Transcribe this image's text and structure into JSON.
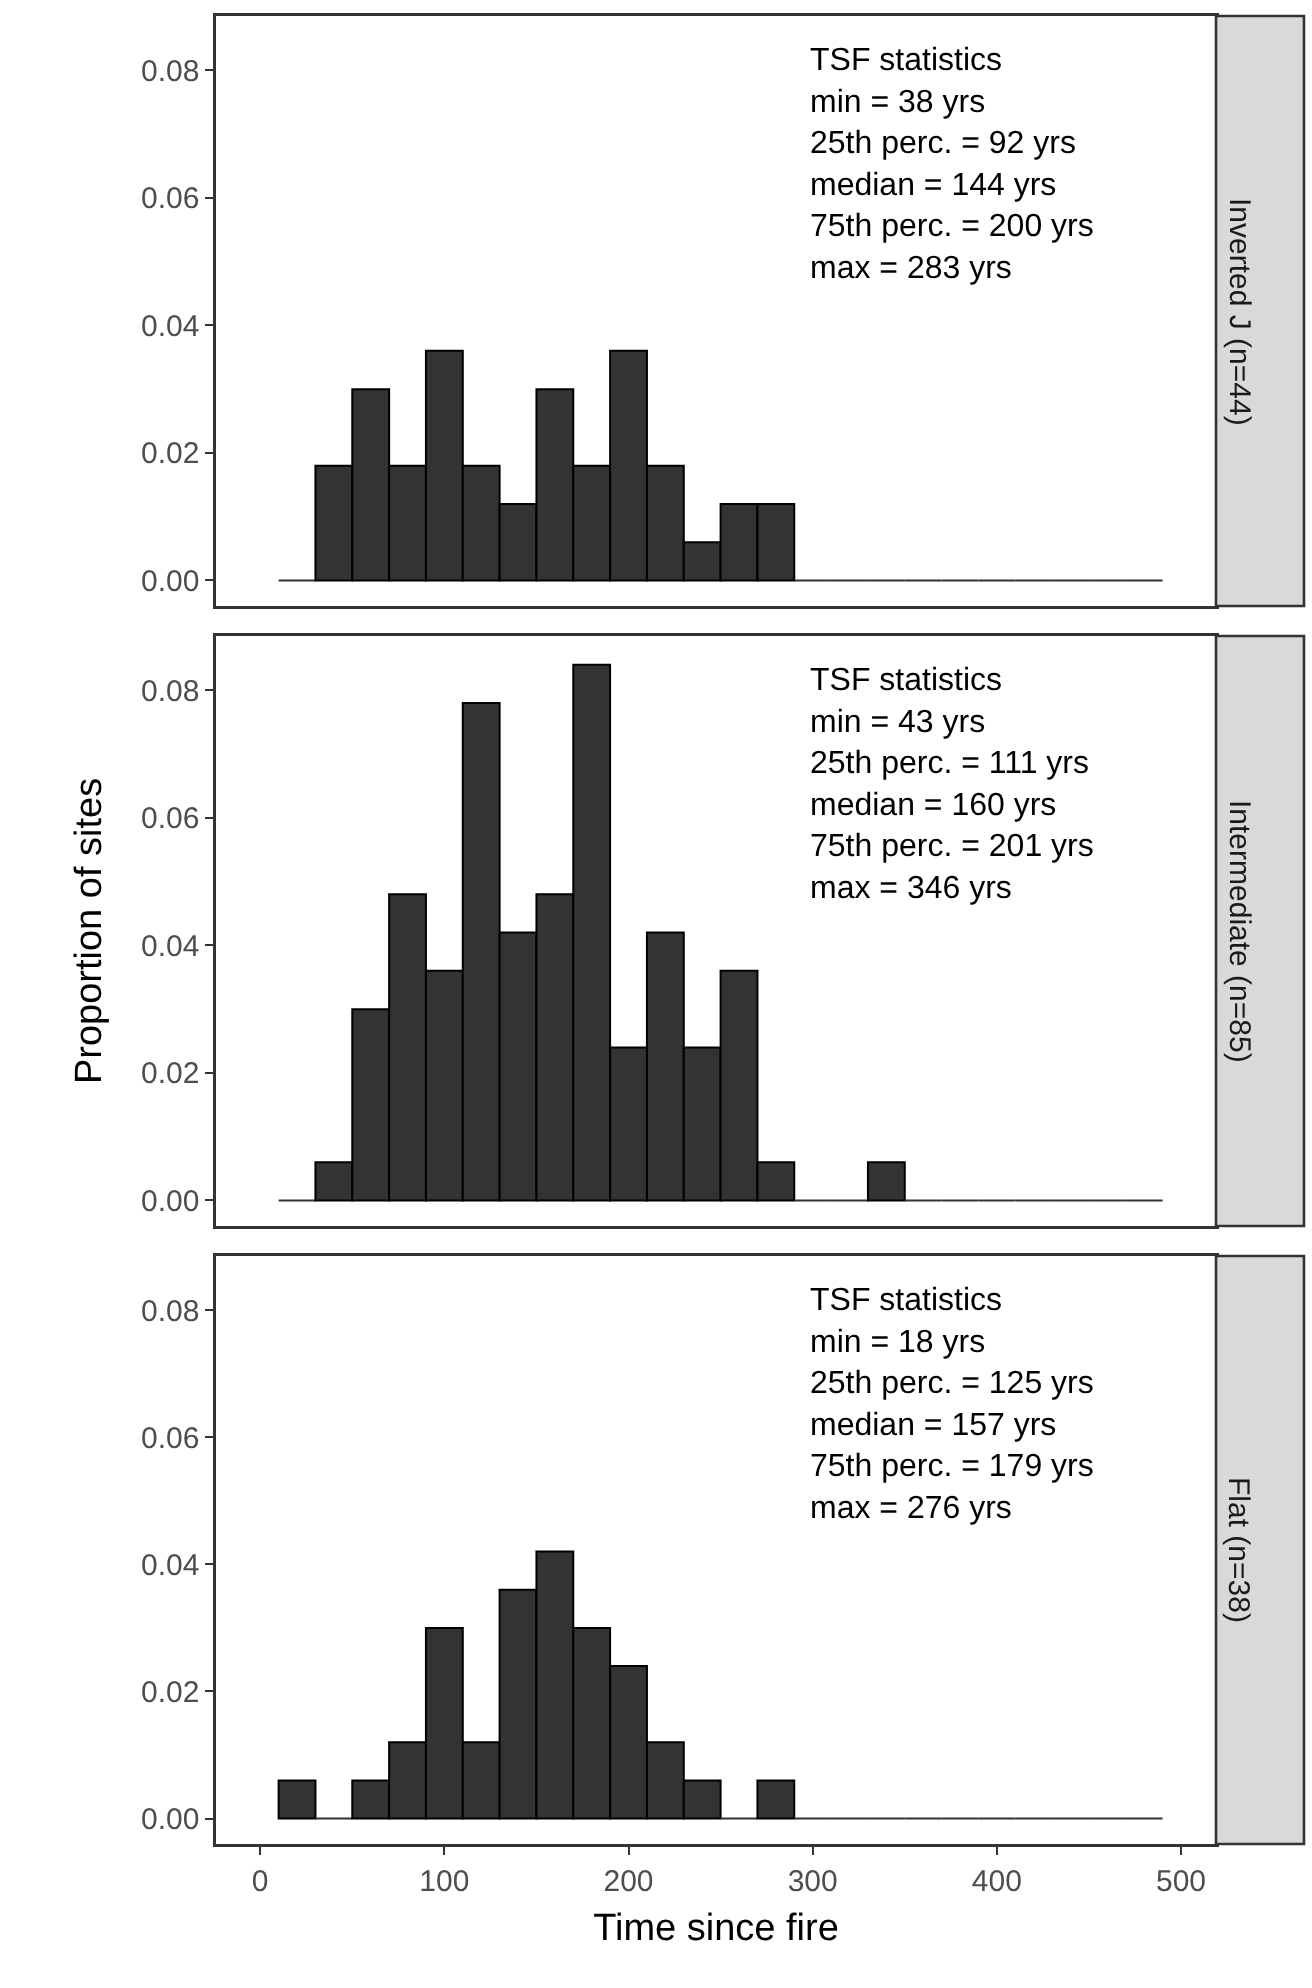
{
  "chart_data": [
    {
      "type": "histogram",
      "title": "Inverted J (n=44)",
      "bins": [
        10,
        30,
        50,
        70,
        90,
        110,
        130,
        150,
        170,
        190,
        210,
        230,
        250,
        270,
        290,
        310,
        330,
        350,
        370,
        390,
        410,
        430,
        450,
        470,
        490
      ],
      "values": [
        0,
        0.018,
        0.03,
        0.018,
        0.036,
        0.018,
        0.012,
        0.03,
        0.018,
        0.036,
        0.018,
        0.006,
        0.012,
        0.012,
        0,
        0,
        0,
        0,
        0,
        0,
        0,
        0,
        0,
        0
      ],
      "color": "#333333",
      "xlim": [
        -24,
        519
      ],
      "ylim": [
        -0.004,
        0.0885
      ],
      "xticks": [
        0,
        100,
        200,
        300,
        400,
        500
      ],
      "yticks": [
        {
          "value": 0,
          "label": "0.00"
        },
        {
          "value": 0.02,
          "label": "0.02"
        },
        {
          "value": 0.04,
          "label": "0.04"
        },
        {
          "value": 0.06,
          "label": "0.06"
        },
        {
          "value": 0.08,
          "label": "0.08"
        }
      ],
      "tick_labels": "y",
      "grid": false,
      "legend": false,
      "annotations": [
        "TSF statistics",
        "min = 38 yrs",
        "25th perc. = 92 yrs",
        "median = 144 yrs",
        "75th perc. = 200 yrs",
        "max = 283 yrs"
      ]
    },
    {
      "type": "histogram",
      "title": "Intermediate (n=85)",
      "ylabel": "Proportion of sites",
      "bins": [
        10,
        30,
        50,
        70,
        90,
        110,
        130,
        150,
        170,
        190,
        210,
        230,
        250,
        270,
        290,
        310,
        330,
        350,
        370,
        390,
        410,
        430,
        450,
        470,
        490
      ],
      "values": [
        0,
        0.006,
        0.03,
        0.048,
        0.036,
        0.078,
        0.042,
        0.048,
        0.084,
        0.024,
        0.042,
        0.024,
        0.036,
        0.006,
        0,
        0,
        0.006,
        0,
        0,
        0,
        0,
        0,
        0,
        0
      ],
      "color": "#333333",
      "xlim": [
        -24,
        519
      ],
      "ylim": [
        -0.004,
        0.0885
      ],
      "xticks": [
        0,
        100,
        200,
        300,
        400,
        500
      ],
      "yticks": [
        {
          "value": 0,
          "label": "0.00"
        },
        {
          "value": 0.02,
          "label": "0.02"
        },
        {
          "value": 0.04,
          "label": "0.04"
        },
        {
          "value": 0.06,
          "label": "0.06"
        },
        {
          "value": 0.08,
          "label": "0.08"
        }
      ],
      "tick_labels": "y",
      "grid": false,
      "legend": false,
      "annotations": [
        "TSF statistics",
        "min = 43 yrs",
        "25th perc. = 111 yrs",
        "median = 160 yrs",
        "75th perc. = 201 yrs",
        "max = 346 yrs"
      ]
    },
    {
      "type": "histogram",
      "title": "Flat (n=38)",
      "xlabel": "Time since fire",
      "bins": [
        10,
        30,
        50,
        70,
        90,
        110,
        130,
        150,
        170,
        190,
        210,
        230,
        250,
        270,
        290,
        310,
        330,
        350,
        370,
        390,
        410,
        430,
        450,
        470,
        490
      ],
      "values": [
        0.006,
        0,
        0.006,
        0.012,
        0.03,
        0.012,
        0.036,
        0.042,
        0.03,
        0.024,
        0.012,
        0.006,
        0,
        0.006,
        0,
        0,
        0,
        0,
        0,
        0,
        0,
        0,
        0,
        0
      ],
      "color": "#333333",
      "xlim": [
        -24,
        519
      ],
      "ylim": [
        -0.004,
        0.0885
      ],
      "xticks": [
        0,
        100,
        200,
        300,
        400,
        500
      ],
      "yticks": [
        {
          "value": 0,
          "label": "0.00"
        },
        {
          "value": 0.02,
          "label": "0.02"
        },
        {
          "value": 0.04,
          "label": "0.04"
        },
        {
          "value": 0.06,
          "label": "0.06"
        },
        {
          "value": 0.08,
          "label": "0.08"
        }
      ],
      "grid": false,
      "legend": false,
      "annotations": [
        "TSF statistics",
        "min = 18 yrs",
        "25th perc. = 125 yrs",
        "median = 157 yrs",
        "75th perc. = 179 yrs",
        "max = 276 yrs"
      ]
    }
  ]
}
